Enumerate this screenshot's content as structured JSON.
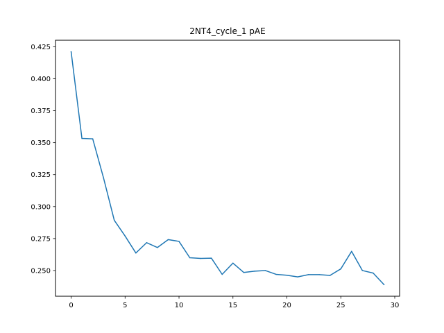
{
  "chart_data": {
    "type": "line",
    "title": "2NT4_cycle_1 pAE",
    "xlabel": "",
    "ylabel": "",
    "x": [
      0,
      1,
      2,
      3,
      4,
      5,
      6,
      7,
      8,
      9,
      10,
      11,
      12,
      13,
      14,
      15,
      16,
      17,
      18,
      19,
      20,
      21,
      22,
      23,
      24,
      25,
      26,
      27,
      28,
      29
    ],
    "series": [
      {
        "values": [
          0.421,
          0.3533,
          0.353,
          0.3225,
          0.2893,
          0.277,
          0.2637,
          0.2718,
          0.268,
          0.2742,
          0.2728,
          0.26,
          0.2595,
          0.2597,
          0.247,
          0.2558,
          0.2485,
          0.2495,
          0.25,
          0.247,
          0.2463,
          0.245,
          0.2468,
          0.2468,
          0.2462,
          0.2513,
          0.265,
          0.25,
          0.248,
          0.239
        ],
        "color": "#1f77b4"
      }
    ],
    "xlim": [
      -1.45,
      30.45
    ],
    "ylim": [
      0.2299,
      0.4301
    ],
    "xticks": [
      0,
      5,
      10,
      15,
      20,
      25,
      30
    ],
    "xtick_labels": [
      "0",
      "5",
      "10",
      "15",
      "20",
      "25",
      "30"
    ],
    "yticks": [
      0.25,
      0.275,
      0.3,
      0.325,
      0.35,
      0.375,
      0.4,
      0.425
    ],
    "ytick_labels": [
      "0.250",
      "0.275",
      "0.300",
      "0.325",
      "0.350",
      "0.375",
      "0.400",
      "0.425"
    ],
    "grid": false,
    "legend": "none"
  }
}
